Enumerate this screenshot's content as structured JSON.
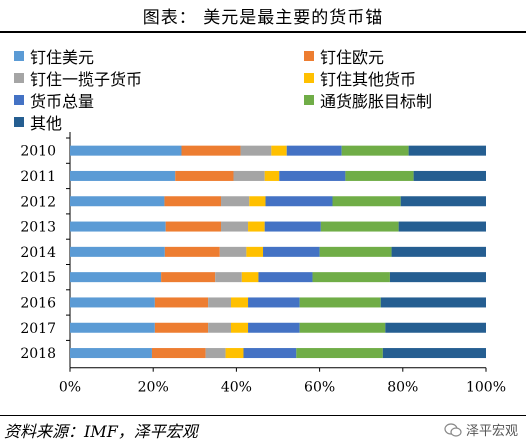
{
  "title": "图表：  美元是最主要的货币锚",
  "source": "资料来源：IMF，泽平宏观",
  "watermark": "泽平宏观",
  "chart_data": {
    "type": "bar",
    "orientation": "horizontal",
    "stacked": "percent",
    "categories": [
      "2010",
      "2011",
      "2012",
      "2013",
      "2014",
      "2015",
      "2016",
      "2017",
      "2018"
    ],
    "xticks": [
      "0%",
      "20%",
      "40%",
      "60%",
      "80%",
      "100%"
    ],
    "xlim": [
      0,
      100
    ],
    "grid": false,
    "legend_position": "top",
    "series": [
      {
        "name": "钉住美元",
        "color": "#5B9BD5",
        "values": [
          26.8,
          25.3,
          22.7,
          23.0,
          22.8,
          21.9,
          20.4,
          20.4,
          19.7
        ]
      },
      {
        "name": "钉住欧元",
        "color": "#ED7D31",
        "values": [
          14.2,
          14.0,
          13.6,
          13.3,
          13.2,
          13.0,
          12.8,
          12.8,
          12.9
        ]
      },
      {
        "name": "钉住一揽子货币",
        "color": "#A5A5A5",
        "values": [
          7.4,
          7.5,
          6.8,
          6.5,
          6.4,
          6.4,
          5.5,
          5.5,
          4.8
        ]
      },
      {
        "name": "钉住其他货币",
        "color": "#FFC000",
        "values": [
          3.7,
          3.5,
          3.9,
          4.0,
          4.0,
          4.0,
          4.1,
          4.1,
          4.3
        ]
      },
      {
        "name": "货币总量",
        "color": "#4472C4",
        "values": [
          13.2,
          15.9,
          16.1,
          13.5,
          13.6,
          13.0,
          12.4,
          12.4,
          12.7
        ]
      },
      {
        "name": "通货膨胀目标制",
        "color": "#70AD47",
        "values": [
          16.1,
          16.4,
          16.4,
          18.7,
          17.3,
          18.6,
          19.5,
          20.6,
          20.8
        ]
      },
      {
        "name": "其他",
        "color": "#255E91",
        "values": [
          18.6,
          17.4,
          20.5,
          21.0,
          22.7,
          23.1,
          25.3,
          24.2,
          24.8
        ]
      }
    ]
  }
}
